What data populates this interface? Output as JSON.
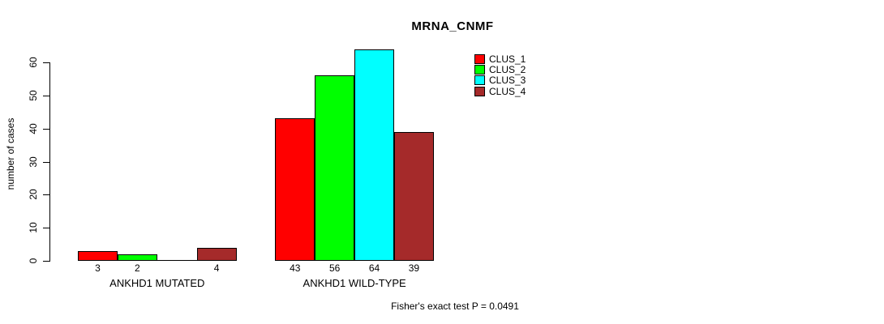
{
  "title": "MRNA_CNMF",
  "annotation": "Fisher's exact test P = 0.0491",
  "chart_data": {
    "type": "bar",
    "categories": [
      "ANKHD1 MUTATED",
      "ANKHD1 WILD-TYPE"
    ],
    "series": [
      {
        "name": "CLUS_1",
        "color": "#ff0000",
        "values": [
          3,
          43
        ]
      },
      {
        "name": "CLUS_2",
        "color": "#00ff00",
        "values": [
          2,
          56
        ]
      },
      {
        "name": "CLUS_3",
        "color": "#00ffff",
        "values": [
          0,
          64
        ]
      },
      {
        "name": "CLUS_4",
        "color": "#a52a2a",
        "values": [
          4,
          39
        ]
      }
    ],
    "ylabel": "number of cases",
    "ylim": [
      0,
      60
    ],
    "yticks": [
      0,
      10,
      20,
      30,
      40,
      50,
      60
    ],
    "grid": false,
    "legend_position": "top-right",
    "bar_value_labels_shown": true,
    "zero_value_labels_hidden": true
  }
}
